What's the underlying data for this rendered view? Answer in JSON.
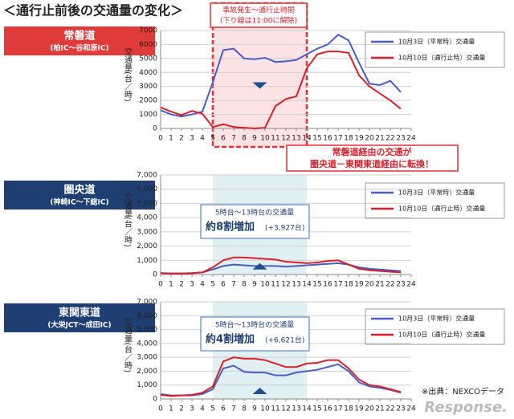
{
  "page": {
    "title": "＜通行止前後の交通量の変化＞",
    "source": "※出典：NEXCOデータ",
    "watermark": "Response."
  },
  "chart_data": [
    {
      "type": "line",
      "title": "常磐道",
      "subtitle": "(柏IC～谷和原IC)",
      "ylabel": "交通量(台／時)",
      "x": [
        0,
        1,
        2,
        3,
        4,
        5,
        6,
        7,
        8,
        9,
        10,
        11,
        12,
        13,
        14,
        15,
        16,
        17,
        18,
        19,
        20,
        21,
        22,
        23
      ],
      "xlim": [
        0,
        24
      ],
      "xticks": [
        0,
        1,
        2,
        3,
        4,
        5,
        6,
        7,
        8,
        9,
        10,
        11,
        12,
        13,
        14,
        15,
        16,
        17,
        18,
        19,
        20,
        21,
        22,
        23,
        24
      ],
      "ylim": [
        0,
        7000
      ],
      "yticks": [
        0,
        1000,
        2000,
        3000,
        4000,
        5000,
        6000,
        7000
      ],
      "grid": true,
      "highlight": [
        5,
        14
      ],
      "series": [
        {
          "name": "10月3日（平常時）交通量",
          "color": "#4a5cc6",
          "values": [
            1300,
            1000,
            850,
            1000,
            1200,
            3300,
            5600,
            5700,
            5000,
            4950,
            5050,
            4750,
            4800,
            4900,
            5300,
            5700,
            6000,
            6700,
            6300,
            4700,
            3200,
            3100,
            3400,
            2600
          ]
        },
        {
          "name": "10月10日（通行止時）交通量",
          "color": "#d9202a",
          "values": [
            1500,
            1200,
            950,
            1250,
            1050,
            100,
            300,
            100,
            50,
            0,
            50,
            1600,
            2100,
            2300,
            4300,
            5300,
            5500,
            5500,
            5400,
            3800,
            3000,
            2500,
            2000,
            1400
          ]
        }
      ],
      "annotations": [
        "事故発生～通行止時間",
        "(下り線は11:00に解除)",
        "常磐道経由の交通が",
        "圏央道－東関東道経由に転換！"
      ]
    },
    {
      "type": "line",
      "title": "圏央道",
      "subtitle": "(神崎IC～下総IC)",
      "ylabel": "交通量(台／時)",
      "x": [
        0,
        1,
        2,
        3,
        4,
        5,
        6,
        7,
        8,
        9,
        10,
        11,
        12,
        13,
        14,
        15,
        16,
        17,
        18,
        19,
        20,
        21,
        22,
        23
      ],
      "xlim": [
        0,
        24
      ],
      "xticks": [
        0,
        1,
        2,
        3,
        4,
        5,
        6,
        7,
        8,
        9,
        10,
        11,
        12,
        13,
        14,
        15,
        16,
        17,
        18,
        19,
        20,
        21,
        22,
        23,
        24
      ],
      "ylim": [
        0,
        7000
      ],
      "yticks": [
        0,
        {
          "value": 1000,
          "label": "1,000"
        },
        {
          "value": 2000,
          "label": "2,000"
        },
        {
          "value": 3000,
          "label": "3,000"
        },
        {
          "value": 4000,
          "label": "4,000"
        },
        {
          "value": 5000,
          "label": "5,000"
        },
        {
          "value": 6000,
          "label": "6,000"
        },
        {
          "value": 7000,
          "label": "7,000"
        }
      ],
      "grid": true,
      "highlight": [
        5,
        14
      ],
      "series": [
        {
          "name": "10月3日（平常時）交通量",
          "color": "#4a5cc6",
          "values": [
            100,
            80,
            80,
            100,
            150,
            350,
            600,
            700,
            650,
            600,
            600,
            600,
            550,
            600,
            650,
            700,
            750,
            800,
            700,
            500,
            400,
            350,
            300,
            250
          ]
        },
        {
          "name": "10月10日（通行止時）交通量",
          "color": "#d9202a",
          "values": [
            100,
            80,
            80,
            100,
            150,
            500,
            1000,
            1200,
            1200,
            1150,
            1100,
            1050,
            900,
            850,
            800,
            850,
            950,
            1000,
            700,
            400,
            300,
            250,
            200,
            150
          ]
        }
      ],
      "annotations": [
        "5時台～13時台の交通量",
        "約8割増加",
        "(+3,927台)"
      ]
    },
    {
      "type": "line",
      "title": "東関東道",
      "subtitle": "(大栄JCT～成田IC)",
      "ylabel": "交通量(台／時)",
      "x": [
        0,
        1,
        2,
        3,
        4,
        5,
        6,
        7,
        8,
        9,
        10,
        11,
        12,
        13,
        14,
        15,
        16,
        17,
        18,
        19,
        20,
        21,
        22,
        23
      ],
      "xlim": [
        0,
        24
      ],
      "xticks": [
        0,
        1,
        2,
        3,
        4,
        5,
        6,
        7,
        8,
        9,
        10,
        11,
        12,
        13,
        14,
        15,
        16,
        17,
        18,
        19,
        20,
        21,
        22,
        23,
        24
      ],
      "ylim": [
        0,
        7000
      ],
      "yticks": [
        0,
        {
          "value": 1000,
          "label": "1,000"
        },
        {
          "value": 2000,
          "label": "2,000"
        },
        {
          "value": 3000,
          "label": "3,000"
        },
        {
          "value": 4000,
          "label": "4,000"
        },
        {
          "value": 5000,
          "label": "5,000"
        },
        {
          "value": 6000,
          "label": "6,000"
        },
        {
          "value": 7000,
          "label": "7,000"
        }
      ],
      "grid": true,
      "highlight": [
        5,
        14
      ],
      "series": [
        {
          "name": "10月3日（平常時）交通量",
          "color": "#4a5cc6",
          "values": [
            350,
            250,
            250,
            250,
            350,
            700,
            2200,
            2400,
            1950,
            1900,
            1900,
            1700,
            1700,
            1900,
            2000,
            2100,
            2300,
            2500,
            2000,
            1200,
            900,
            800,
            650,
            450
          ]
        },
        {
          "name": "10月10日（通行止時）交通量",
          "color": "#d9202a",
          "values": [
            300,
            200,
            250,
            300,
            450,
            900,
            2700,
            3000,
            2900,
            2900,
            2800,
            2550,
            2300,
            2300,
            2550,
            2600,
            2800,
            2800,
            2200,
            1400,
            1000,
            900,
            700,
            500
          ]
        }
      ],
      "annotations": [
        "5時台～13時台の交通量",
        "約4割増加",
        "(+6,621台)"
      ]
    }
  ]
}
